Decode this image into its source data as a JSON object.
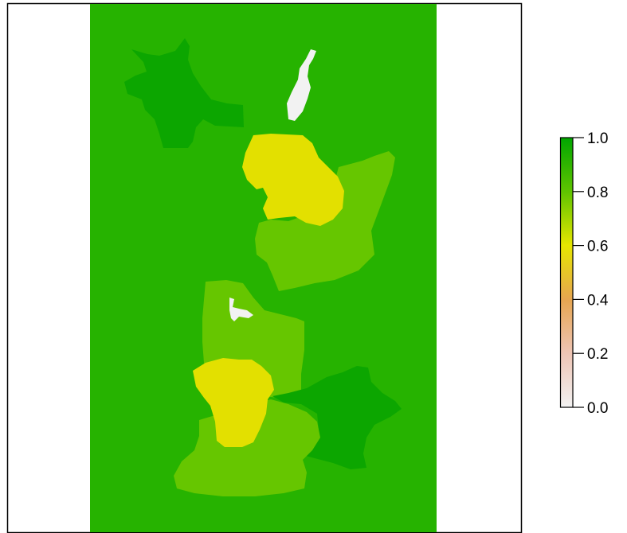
{
  "chart_data": {
    "type": "heatmap",
    "title": "",
    "xlabel": "",
    "ylabel": "",
    "axes_visible": false,
    "legend": {
      "placement": "right",
      "ticks": [
        "0.0",
        "0.2",
        "0.4",
        "0.6",
        "0.8",
        "1.0"
      ],
      "tick_values": [
        0.0,
        0.2,
        0.4,
        0.6,
        0.8,
        1.0
      ],
      "range": [
        0,
        1
      ],
      "stops": [
        "#F2F2F2",
        "#EEC5B5",
        "#E6A550",
        "#E6E600",
        "#5FC400",
        "#00A600"
      ]
    },
    "raster": {
      "background_value": 0.8,
      "regions": [
        {
          "name": "patch-top-left",
          "value": 0.9
        },
        {
          "name": "patch-top-white",
          "value": 0.0
        },
        {
          "name": "patch-upper-yellow",
          "value": 0.6
        },
        {
          "name": "patch-upper-lightgreen",
          "value": 0.7
        },
        {
          "name": "patch-middle-lightgreen",
          "value": 0.7
        },
        {
          "name": "patch-middle-white",
          "value": 0.0
        },
        {
          "name": "patch-lower-darkgreen",
          "value": 0.9
        },
        {
          "name": "patch-lower-lightgreen",
          "value": 0.7
        },
        {
          "name": "patch-lower-yellow",
          "value": 0.6
        }
      ]
    },
    "colors": {
      "background": "#26B300",
      "dark_green": "#0CA600",
      "light_green": "#66C600",
      "yellow": "#E3E000",
      "white": "#F2F2F2"
    }
  }
}
